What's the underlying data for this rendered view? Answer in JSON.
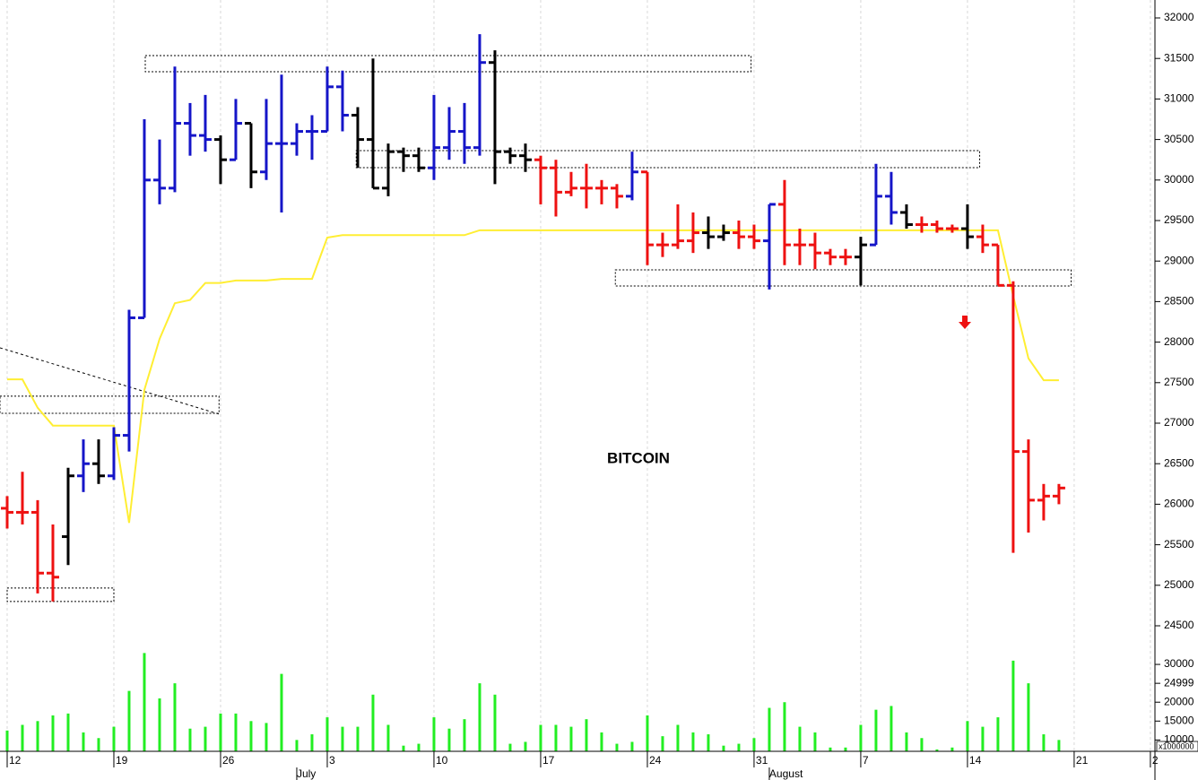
{
  "chart_data": {
    "type": "ohlc",
    "title": "BITCOIN",
    "x": [
      0,
      1,
      2,
      3,
      4,
      5,
      6,
      7,
      8,
      9,
      10,
      11,
      12,
      13,
      14,
      15,
      16,
      17,
      18,
      19,
      20,
      21,
      22,
      23,
      24,
      25,
      26,
      27,
      28,
      29,
      30,
      31,
      32,
      33,
      34,
      35,
      36,
      37,
      38,
      39,
      40,
      41,
      42,
      43,
      44,
      45,
      46,
      47,
      48,
      49,
      50,
      51,
      52,
      53,
      54,
      55,
      56,
      57,
      58,
      59,
      60,
      61,
      62,
      63,
      64,
      65,
      66,
      67,
      68,
      69
    ],
    "open": [
      25950,
      25900,
      25900,
      25150,
      25600,
      26350,
      26500,
      26350,
      26850,
      28300,
      30000,
      29900,
      30700,
      30550,
      30500,
      30250,
      30700,
      30100,
      30450,
      30450,
      30600,
      30600,
      31150,
      30800,
      30500,
      29900,
      30350,
      30300,
      30150,
      30400,
      30600,
      30400,
      31450,
      30350,
      30300,
      30250,
      30150,
      29850,
      29900,
      29900,
      29900,
      29800,
      30100,
      29200,
      29200,
      29250,
      29350,
      29300,
      29350,
      29300,
      29250,
      29700,
      29200,
      29200,
      29100,
      29050,
      29050,
      29200,
      29800,
      29600,
      29450,
      29450,
      29400,
      29400,
      29300,
      29200,
      28700,
      26650,
      26050,
      26100
    ],
    "high": [
      26100,
      26400,
      26050,
      25750,
      26450,
      26800,
      26800,
      26950,
      28400,
      30750,
      30500,
      31400,
      30950,
      31050,
      30550,
      31000,
      30700,
      31000,
      31300,
      30700,
      30800,
      31400,
      31350,
      30900,
      31500,
      30450,
      30400,
      30400,
      31050,
      30900,
      30950,
      31800,
      31600,
      30400,
      30450,
      30300,
      30250,
      30100,
      30200,
      30000,
      29950,
      30350,
      30100,
      29350,
      29700,
      29600,
      29550,
      29450,
      29500,
      29450,
      29700,
      30000,
      29400,
      29350,
      29150,
      29150,
      29300,
      30200,
      30100,
      29700,
      29550,
      29500,
      29450,
      29700,
      29450,
      29200,
      28750,
      26800,
      26250,
      26250
    ],
    "low": [
      25700,
      25750,
      24900,
      24800,
      25250,
      26150,
      26250,
      26300,
      26650,
      28300,
      29700,
      29850,
      30300,
      30350,
      29950,
      30250,
      29900,
      30000,
      29600,
      30300,
      30250,
      30600,
      30600,
      30150,
      29900,
      29800,
      30100,
      30100,
      30000,
      30250,
      30200,
      30300,
      29950,
      30200,
      30100,
      29700,
      29550,
      29800,
      29650,
      29700,
      29650,
      29750,
      28950,
      29050,
      29150,
      29100,
      29150,
      29250,
      29150,
      29150,
      28650,
      28950,
      28950,
      28900,
      28950,
      28950,
      28700,
      29200,
      29450,
      29400,
      29350,
      29350,
      29350,
      29150,
      29100,
      28700,
      25400,
      25650,
      25800,
      26000
    ],
    "close": [
      25900,
      25900,
      25150,
      25100,
      26350,
      26500,
      26350,
      26850,
      28300,
      30000,
      29900,
      30700,
      30550,
      30500,
      30250,
      30700,
      30100,
      30450,
      30450,
      30600,
      30600,
      31150,
      30800,
      30500,
      29900,
      30350,
      30300,
      30150,
      30400,
      30600,
      30400,
      31450,
      30350,
      30300,
      30250,
      30150,
      29850,
      29900,
      29900,
      29900,
      29800,
      30100,
      29200,
      29200,
      29250,
      29350,
      29300,
      29350,
      29300,
      29250,
      29700,
      29200,
      29200,
      29100,
      29050,
      29050,
      29200,
      29800,
      29600,
      29450,
      29450,
      29400,
      29400,
      29300,
      29200,
      28700,
      26650,
      26050,
      26100,
      26200
    ],
    "colors": [
      "#ee1111",
      "#ee1111",
      "#ee1111",
      "#ee1111",
      "#000000",
      "#1515c8",
      "#000000",
      "#1515c8",
      "#1515c8",
      "#1515c8",
      "#1515c8",
      "#1515c8",
      "#1515c8",
      "#1515c8",
      "#000000",
      "#1515c8",
      "#000000",
      "#1515c8",
      "#1515c8",
      "#1515c8",
      "#1515c8",
      "#1515c8",
      "#1515c8",
      "#000000",
      "#000000",
      "#000000",
      "#000000",
      "#000000",
      "#1515c8",
      "#1515c8",
      "#1515c8",
      "#1515c8",
      "#000000",
      "#000000",
      "#000000",
      "#ee1111",
      "#ee1111",
      "#ee1111",
      "#ee1111",
      "#ee1111",
      "#ee1111",
      "#1515c8",
      "#ee1111",
      "#ee1111",
      "#ee1111",
      "#ee1111",
      "#000000",
      "#000000",
      "#ee1111",
      "#ee1111",
      "#1515c8",
      "#ee1111",
      "#ee1111",
      "#ee1111",
      "#ee1111",
      "#ee1111",
      "#000000",
      "#1515c8",
      "#1515c8",
      "#000000",
      "#ee1111",
      "#ee1111",
      "#ee1111",
      "#000000",
      "#ee1111",
      "#ee1111",
      "#ee1111",
      "#ee1111",
      "#ee1111",
      "#ee1111"
    ],
    "xlim": [
      -0.47,
      75.3
    ],
    "ylim": [
      24500,
      32000
    ],
    "yticks": [
      24500,
      25000,
      25500,
      26000,
      26500,
      27000,
      27500,
      28000,
      28500,
      29000,
      29500,
      30000,
      30500,
      31000,
      31500,
      32000
    ],
    "xticks": [
      {
        "value": 0,
        "label": "12"
      },
      {
        "value": 7,
        "label": "19"
      },
      {
        "value": 14,
        "label": "26"
      },
      {
        "value": 21,
        "label": "3"
      },
      {
        "value": 28,
        "label": "10"
      },
      {
        "value": 35,
        "label": "17"
      },
      {
        "value": 42,
        "label": "24"
      },
      {
        "value": 49,
        "label": "31"
      },
      {
        "value": 56,
        "label": "7"
      },
      {
        "value": 63,
        "label": "14"
      },
      {
        "value": 70,
        "label": "21"
      },
      {
        "value": 75,
        "label": "2"
      }
    ],
    "months": [
      {
        "value": 19,
        "label": "July"
      },
      {
        "value": 50,
        "label": "August"
      }
    ],
    "grid": true,
    "line": {
      "color": "#ffee33",
      "values": [
        27540,
        27540,
        27190,
        26970,
        26970,
        26970,
        26970,
        26970,
        25770,
        27410,
        28040,
        28480,
        28520,
        28730,
        28730,
        28760,
        28760,
        28760,
        28780,
        28780,
        28780,
        29290,
        29320,
        29320,
        29320,
        29320,
        29320,
        29320,
        29320,
        29320,
        29320,
        29380,
        29380,
        29380,
        29380,
        29380,
        29380,
        29380,
        29380,
        29380,
        29380,
        29380,
        29380,
        29380,
        29380,
        29380,
        29380,
        29380,
        29380,
        29380,
        29380,
        29380,
        29380,
        29380,
        29380,
        29380,
        29380,
        29380,
        29380,
        29380,
        29380,
        29380,
        29380,
        29380,
        29380,
        29380,
        28570,
        27800,
        27530,
        27530
      ]
    },
    "boxes": [
      {
        "x": [
          9.06,
          48.8
        ],
        "y": [
          31336,
          31535
        ]
      },
      {
        "x": [
          22.9,
          63.8
        ],
        "y": [
          30153,
          30363
        ]
      },
      {
        "x": [
          39.9,
          69.8
        ],
        "y": [
          28693,
          28892
        ]
      },
      {
        "x": [
          -0.47,
          13.9
        ],
        "y": [
          27122,
          27333
        ]
      },
      {
        "x": [
          0,
          7
        ],
        "y": [
          24800,
          24966
        ]
      }
    ],
    "trendline": {
      "x": [
        -0.47,
        13.9
      ],
      "y": [
        27930,
        27112
      ]
    },
    "volume": {
      "color": "#22ee22",
      "unit": "x1000000",
      "ylim": [
        7000,
        35000
      ],
      "yticks": [
        10000,
        15000,
        20000,
        24999,
        30000
      ],
      "values": [
        12500,
        14000,
        15000,
        16500,
        17000,
        12000,
        10500,
        13500,
        23000,
        33000,
        21000,
        25000,
        13000,
        13500,
        17000,
        17000,
        15000,
        14500,
        27500,
        10000,
        11500,
        16000,
        13500,
        13500,
        22000,
        14000,
        8500,
        9000,
        16000,
        13000,
        15500,
        25000,
        22000,
        9000,
        9500,
        14000,
        14000,
        13500,
        15500,
        12000,
        9000,
        9500,
        16500,
        11000,
        14000,
        12000,
        11500,
        8500,
        9000,
        10500,
        18500,
        20000,
        13500,
        12000,
        8000,
        8000,
        14000,
        18000,
        19000,
        12000,
        10500,
        7500,
        8000,
        15000,
        13500,
        16000,
        31000,
        25000,
        11500,
        10000
      ]
    }
  }
}
